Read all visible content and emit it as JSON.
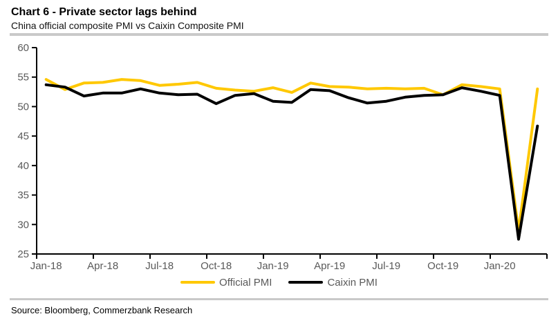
{
  "header": {
    "title": "Chart 6 - Private sector lags behind",
    "subtitle": "China official composite PMI vs Caixin Composite PMI"
  },
  "footer": {
    "source": "Source: Bloomberg, Commerzbank Research"
  },
  "colors": {
    "accent_yellow": "#FFC800",
    "line_black": "#000000",
    "axis_line": "#000000",
    "axis_label": "#595959",
    "divider": "#C9C9C9"
  },
  "chart_data": {
    "type": "line",
    "title": "Chart 6 - Private sector lags behind",
    "subtitle": "China official composite PMI vs Caixin Composite PMI",
    "x": [
      "Jan-18",
      "Feb-18",
      "Mar-18",
      "Apr-18",
      "May-18",
      "Jun-18",
      "Jul-18",
      "Aug-18",
      "Sep-18",
      "Oct-18",
      "Nov-18",
      "Dec-18",
      "Jan-19",
      "Feb-19",
      "Mar-19",
      "Apr-19",
      "May-19",
      "Jun-19",
      "Jul-19",
      "Aug-19",
      "Sep-19",
      "Oct-19",
      "Nov-19",
      "Dec-19",
      "Jan-20",
      "Feb-20",
      "Mar-20"
    ],
    "series": [
      {
        "name": "Official PMI",
        "color": "#FFC800",
        "values": [
          54.6,
          52.9,
          54.0,
          54.1,
          54.6,
          54.4,
          53.6,
          53.8,
          54.1,
          53.1,
          52.8,
          52.6,
          53.2,
          52.4,
          54.0,
          53.4,
          53.3,
          53.0,
          53.1,
          53.0,
          53.1,
          52.0,
          53.7,
          53.4,
          53.0,
          28.9,
          53.0
        ]
      },
      {
        "name": "Caixin PMI",
        "color": "#000000",
        "values": [
          53.7,
          53.3,
          51.8,
          52.3,
          52.3,
          53.0,
          52.3,
          52.0,
          52.1,
          50.5,
          51.9,
          52.2,
          50.9,
          50.7,
          52.9,
          52.7,
          51.5,
          50.6,
          50.9,
          51.6,
          51.9,
          52.0,
          53.2,
          52.6,
          51.9,
          27.5,
          46.7
        ]
      }
    ],
    "xtick_labels": [
      "Jan-18",
      "Apr-18",
      "Jul-18",
      "Oct-18",
      "Jan-19",
      "Apr-19",
      "Jul-19",
      "Oct-19",
      "Jan-20"
    ],
    "xtick_every": 3,
    "yticks": [
      25,
      30,
      35,
      40,
      45,
      50,
      55,
      60
    ],
    "ylim": [
      25,
      60
    ],
    "grid": false,
    "legend_position": "bottom"
  }
}
